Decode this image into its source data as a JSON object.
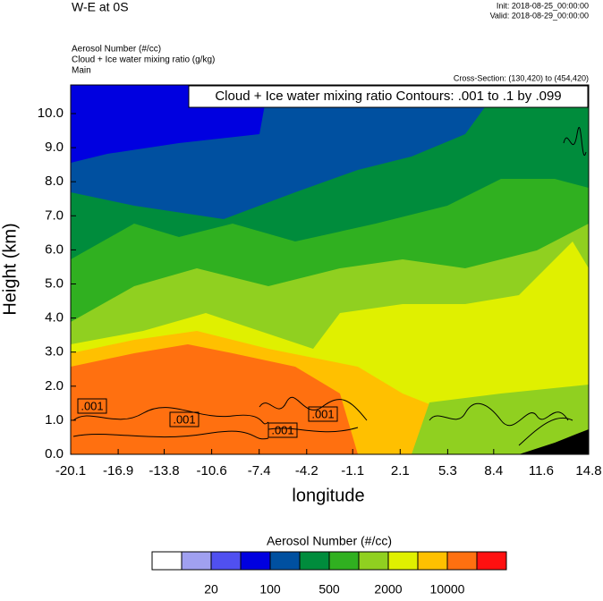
{
  "header": {
    "title": "W-E at 0S",
    "init": "Init: 2018-08-25_00:00:00",
    "valid": "Valid: 2018-08-29_00:00:00",
    "fields": [
      "Aerosol Number   (#/cc)",
      "Cloud + Ice water mixing ratio   (g/kg)",
      "Main"
    ],
    "cross_section": "Cross-Section: (130,420) to (454,420)"
  },
  "chart_data": {
    "type": "contour",
    "annotation": "Cloud + Ice water mixing ratio Contours: .001 to .1 by .099",
    "contour_labels": [
      ".001",
      ".001",
      ".001",
      ".001"
    ],
    "x_label": "longitude",
    "y_label": "Height (km)",
    "xlim": [
      -20.1,
      14.8
    ],
    "ylim": [
      0,
      10.84
    ],
    "xticks": [
      -20.1,
      -16.9,
      -13.8,
      -10.6,
      -7.4,
      -4.2,
      -1.1,
      2.1,
      5.3,
      8.4,
      11.6,
      14.8
    ],
    "yticks": [
      {
        "value": 0,
        "label": "0.0"
      },
      {
        "value": 1,
        "label": "1.0"
      },
      {
        "value": 2,
        "label": "2.0"
      },
      {
        "value": 3,
        "label": "3.0"
      },
      {
        "value": 4,
        "label": "4.0"
      },
      {
        "value": 5,
        "label": "5.0"
      },
      {
        "value": 6,
        "label": "6.0"
      },
      {
        "value": 7,
        "label": "7.0"
      },
      {
        "value": 8,
        "label": "8.0"
      },
      {
        "value": 9,
        "label": "9.0"
      },
      {
        "value": 10,
        "label": "10.0"
      }
    ],
    "colorbar": {
      "title": "Aerosol Number  (#/cc)",
      "colors": [
        "#ffffff",
        "#a0a0f0",
        "#5050f0",
        "#0000e0",
        "#0050a0",
        "#008c3c",
        "#30b020",
        "#90d020",
        "#e0f000",
        "#ffc000",
        "#ff7010",
        "#ff1010"
      ],
      "levels": [
        20,
        100,
        500,
        2000,
        10000
      ]
    }
  }
}
